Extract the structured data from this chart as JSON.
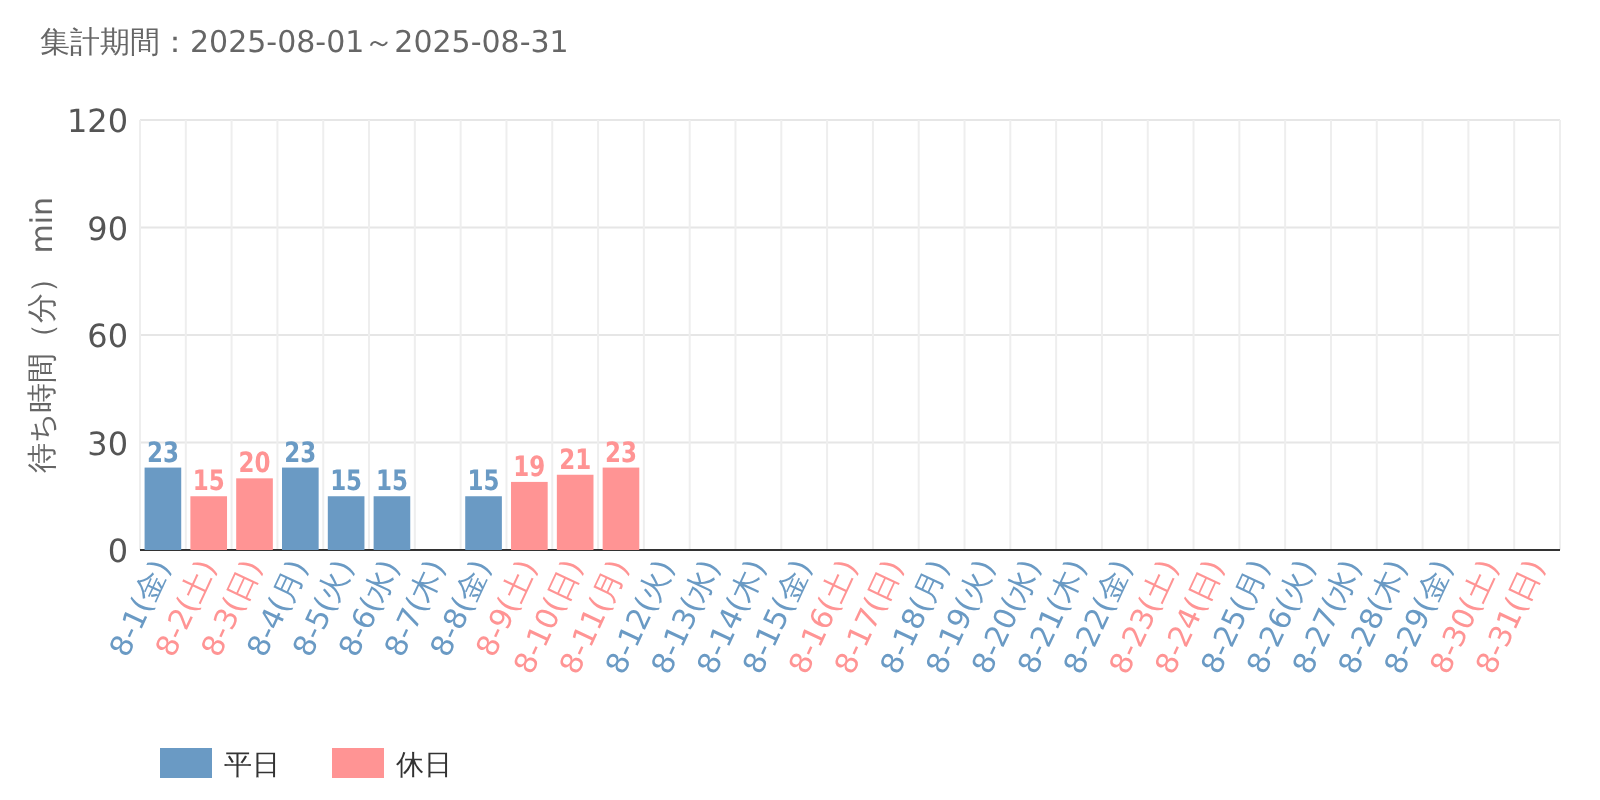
{
  "chart_data": {
    "type": "bar",
    "title": "集計期間：2025-08-01～2025-08-31",
    "ylabel": "待ち時間（分） min",
    "categories": [
      "8-1(金)",
      "8-2(土)",
      "8-3(日)",
      "8-4(月)",
      "8-5(火)",
      "8-6(水)",
      "8-7(木)",
      "8-8(金)",
      "8-9(土)",
      "8-10(日)",
      "8-11(月)",
      "8-12(火)",
      "8-13(水)",
      "8-14(木)",
      "8-15(金)",
      "8-16(土)",
      "8-17(日)",
      "8-18(月)",
      "8-19(火)",
      "8-20(水)",
      "8-21(木)",
      "8-22(金)",
      "8-23(土)",
      "8-24(日)",
      "8-25(月)",
      "8-26(火)",
      "8-27(水)",
      "8-28(木)",
      "8-29(金)",
      "8-30(土)",
      "8-31(日)"
    ],
    "colors": [
      "#6a9ac4",
      "#ff9494",
      "#ff9494",
      "#6a9ac4",
      "#6a9ac4",
      "#6a9ac4",
      "#6a9ac4",
      "#6a9ac4",
      "#ff9494",
      "#ff9494",
      "#ff9494",
      "#6a9ac4",
      "#6a9ac4",
      "#6a9ac4",
      "#6a9ac4",
      "#ff9494",
      "#ff9494",
      "#6a9ac4",
      "#6a9ac4",
      "#6a9ac4",
      "#6a9ac4",
      "#6a9ac4",
      "#ff9494",
      "#ff9494",
      "#6a9ac4",
      "#6a9ac4",
      "#6a9ac4",
      "#6a9ac4",
      "#6a9ac4",
      "#ff9494",
      "#ff9494"
    ],
    "series": [
      {
        "name": "平日",
        "color": "#6a9ac4",
        "values": [
          23,
          null,
          null,
          23,
          15,
          15,
          null,
          15,
          null,
          null,
          null,
          null,
          null,
          null,
          null,
          null,
          null,
          null,
          null,
          null,
          null,
          null,
          null,
          null,
          null,
          null,
          null,
          null,
          null,
          null,
          null
        ]
      },
      {
        "name": "休日",
        "color": "#ff9494",
        "values": [
          null,
          15,
          20,
          null,
          null,
          null,
          null,
          null,
          19,
          21,
          23,
          null,
          null,
          null,
          null,
          null,
          null,
          null,
          null,
          null,
          null,
          null,
          null,
          null,
          null,
          null,
          null,
          null,
          null,
          null,
          null
        ]
      }
    ],
    "ylim": [
      0,
      120
    ],
    "yticks": [
      0,
      30,
      60,
      90,
      120
    ],
    "grid": true,
    "data_labels": true,
    "legend": "bottom left"
  }
}
